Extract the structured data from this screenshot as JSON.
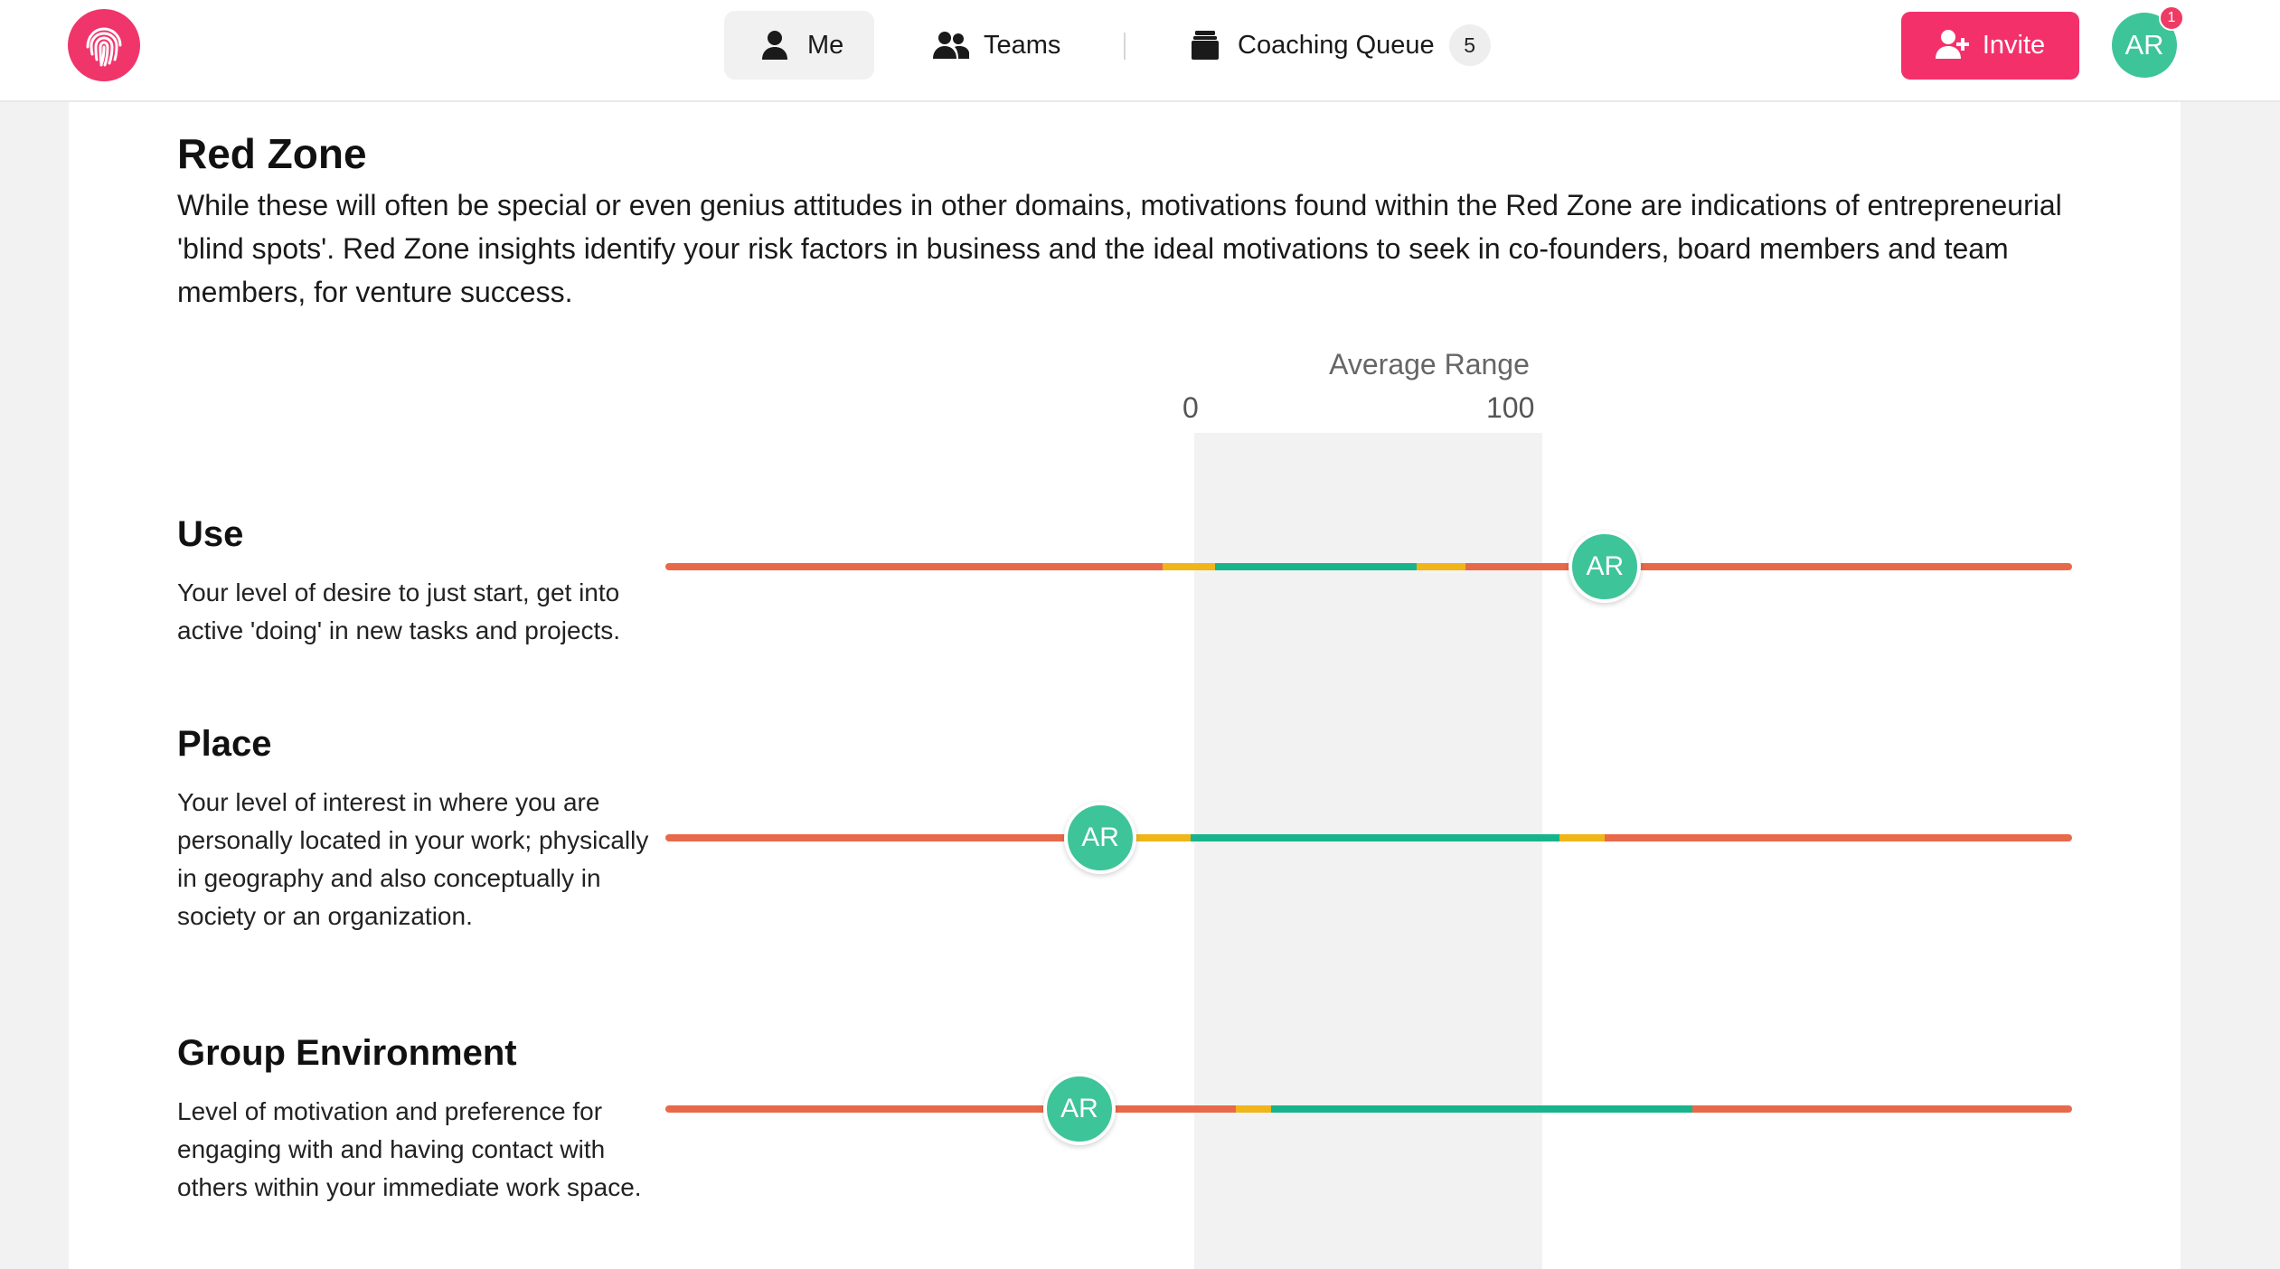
{
  "colors": {
    "brand": "#f0356b",
    "invite_button": "#f4306b",
    "avatar": "#3ec499",
    "track_red": "#e8694a",
    "track_yellow": "#f0b519",
    "track_green": "#17b48b",
    "average_band": "#f2f2f2"
  },
  "header": {
    "logo_icon": "fingerprint-icon",
    "nav": {
      "me": {
        "label": "Me",
        "icon": "user-icon",
        "active": true
      },
      "teams": {
        "label": "Teams",
        "icon": "users-icon"
      },
      "queue": {
        "label": "Coaching Queue",
        "icon": "inbox-icon",
        "count": "5"
      }
    },
    "invite": {
      "label": "Invite",
      "icon": "user-plus-icon"
    },
    "avatar": {
      "initials": "AR",
      "notifications": "1"
    }
  },
  "section": {
    "title": "Red Zone",
    "description": "While these will often be special or even genius attitudes in other domains, motivations found within the Red Zone are indications of entrepreneurial 'blind spots'. Red Zone insights identify your risk factors in business and the ideal motivations to seek in co-founders, board members and team members, for venture success."
  },
  "scale": {
    "title": "Average Range",
    "tick_min": "0",
    "tick_max": "100"
  },
  "rows": [
    {
      "title": "Use",
      "description": "Your level of desire to just start, get into active 'doing' in new tasks and projects.",
      "marker": "AR",
      "score": 118,
      "bands": {
        "yellow_low": [
          -9,
          6
        ],
        "green": [
          6,
          64
        ],
        "yellow_high": [
          64,
          78
        ]
      }
    },
    {
      "title": "Place",
      "description": "Your level of interest in where you are personally located in your work; physically in geography and also conceptually in society or an organization.",
      "marker": "AR",
      "score": -27,
      "bands": {
        "yellow_low": [
          -17,
          -1
        ],
        "green": [
          -1,
          105
        ],
        "yellow_high": [
          105,
          118
        ]
      }
    },
    {
      "title": "Group Environment",
      "description": "Level of motivation and preference for engaging with and having contact with others within your immediate work space.",
      "marker": "AR",
      "score": -33,
      "bands": {
        "yellow_low": [
          12,
          22
        ],
        "green": [
          22,
          143
        ]
      }
    }
  ]
}
